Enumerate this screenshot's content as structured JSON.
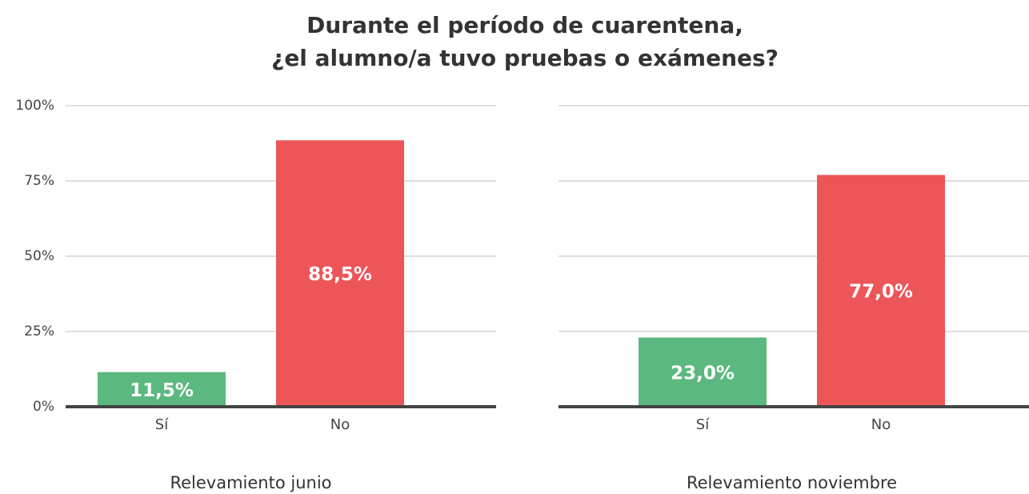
{
  "title": [
    "Durante el período de cuarentena,",
    "¿el alumno/a tuvo pruebas o exámenes?"
  ],
  "chart_data": [
    {
      "type": "bar",
      "xlabel": "Relevamiento junio",
      "categories": [
        "Sí",
        "No"
      ],
      "values": [
        11.5,
        88.5
      ],
      "value_labels": [
        "11,5%",
        "88,5%"
      ],
      "colors": [
        "#5bb97f",
        "#ec5659"
      ],
      "ylim": [
        0,
        100
      ],
      "yticks": [
        {
          "value": 0,
          "label": "0%"
        },
        {
          "value": 25,
          "label": "25%"
        },
        {
          "value": 50,
          "label": "50%"
        },
        {
          "value": 75,
          "label": "75%"
        },
        {
          "value": 100,
          "label": "100%"
        }
      ],
      "grid": true
    },
    {
      "type": "bar",
      "xlabel": "Relevamiento noviembre",
      "categories": [
        "Sí",
        "No"
      ],
      "values": [
        23.0,
        77.0
      ],
      "value_labels": [
        "23,0%",
        "77,0%"
      ],
      "colors": [
        "#5bb97f",
        "#ec5659"
      ],
      "ylim": [
        0,
        100
      ],
      "yticks": [
        0,
        25,
        50,
        75,
        100
      ],
      "show_ytick_labels": false,
      "grid": true
    }
  ]
}
